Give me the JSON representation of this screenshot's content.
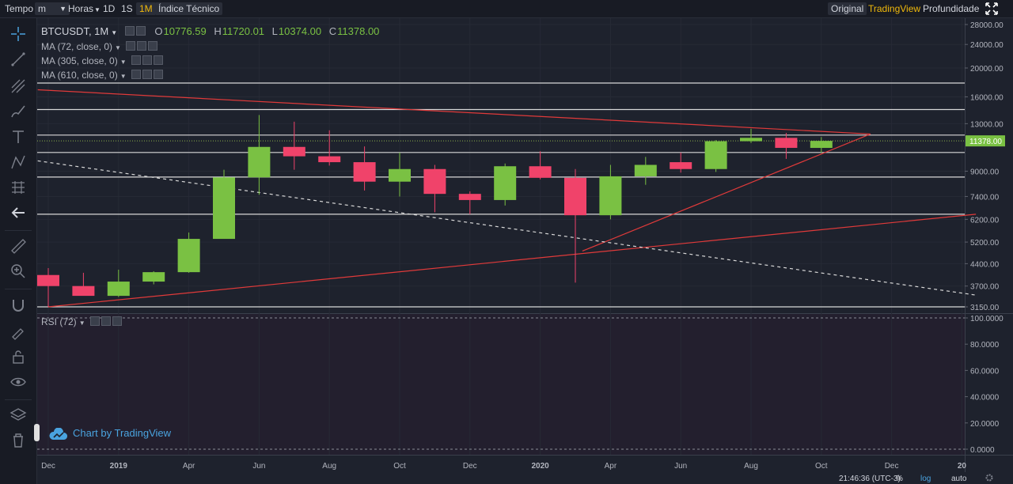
{
  "topbar": {
    "time_label": "Tempo",
    "interval_value": "m",
    "hours_label": "Horas",
    "i_1d": "1D",
    "i_1s": "1S",
    "i_1m": "1M",
    "indicators": "Índice Técnico",
    "view_original": "Original",
    "view_tradingview": "TradingView",
    "view_depth": "Profundidade"
  },
  "legend": {
    "symbol": "BTCUSDT, 1M",
    "o_key": "O",
    "o_val": "10776.59",
    "h_key": "H",
    "h_val": "11720.01",
    "l_key": "L",
    "l_val": "10374.00",
    "c_key": "C",
    "c_val": "11378.00",
    "ma1": "MA (72, close, 0)",
    "ma2": "MA (305, close, 0)",
    "ma3": "MA (610, close, 0)",
    "rsi": "RSI (72)"
  },
  "watermark": "Chart by TradingView",
  "bottombar": {
    "time": "21:46:36 (UTC-3)",
    "percent": "%",
    "log": "log",
    "auto": "auto"
  },
  "colors": {
    "up": "#7ac143",
    "down": "#f0436a",
    "trend": "#e03a3a",
    "bg": "#1e222d",
    "accent": "#f0b90b"
  },
  "chart_data": [
    {
      "type": "candlestick",
      "title": "BTCUSDT, 1M",
      "scale": "log",
      "ylim": [
        3000,
        30000
      ],
      "price_ticks": [
        28000,
        24000,
        20000,
        16000,
        13000,
        9000,
        7400,
        6200,
        5200,
        4400,
        3700,
        3150
      ],
      "price_tick_labels": [
        "28000.00",
        "24000.00",
        "20000.00",
        "16000.00",
        "13000.00",
        "9000.00",
        "7400.00",
        "6200.00",
        "5200.00",
        "4400.00",
        "3700.00",
        "3150.00"
      ],
      "current_price": 11378.0,
      "current_price_label": "11378.00",
      "x_labels": [
        "Dec",
        "2019",
        "Apr",
        "Jun",
        "Aug",
        "Oct",
        "Dec",
        "2020",
        "Apr",
        "Jun",
        "Aug",
        "Oct",
        "Dec",
        "20"
      ],
      "candles": [
        {
          "m": "2018-12",
          "o": 4030,
          "h": 4250,
          "l": 3150,
          "c": 3700
        },
        {
          "m": "2019-01",
          "o": 3700,
          "h": 4100,
          "l": 3450,
          "c": 3430
        },
        {
          "m": "2019-02",
          "o": 3430,
          "h": 4200,
          "l": 3400,
          "c": 3830
        },
        {
          "m": "2019-03",
          "o": 3830,
          "h": 4150,
          "l": 3750,
          "c": 4120
        },
        {
          "m": "2019-04",
          "o": 4120,
          "h": 5600,
          "l": 4100,
          "c": 5330
        },
        {
          "m": "2019-05",
          "o": 5330,
          "h": 9100,
          "l": 5330,
          "c": 8580
        },
        {
          "m": "2019-06",
          "o": 8580,
          "h": 13900,
          "l": 7500,
          "c": 10860
        },
        {
          "m": "2019-07",
          "o": 10860,
          "h": 13200,
          "l": 9100,
          "c": 10100
        },
        {
          "m": "2019-08",
          "o": 10100,
          "h": 12350,
          "l": 9400,
          "c": 9650
        },
        {
          "m": "2019-09",
          "o": 9650,
          "h": 10900,
          "l": 7750,
          "c": 8300
        },
        {
          "m": "2019-10",
          "o": 8300,
          "h": 10400,
          "l": 7400,
          "c": 9150
        },
        {
          "m": "2019-11",
          "o": 9150,
          "h": 9450,
          "l": 6550,
          "c": 7550
        },
        {
          "m": "2019-12",
          "o": 7550,
          "h": 7700,
          "l": 6450,
          "c": 7200
        },
        {
          "m": "2020-01",
          "o": 7200,
          "h": 9550,
          "l": 6900,
          "c": 9350
        },
        {
          "m": "2020-02",
          "o": 9350,
          "h": 10500,
          "l": 8450,
          "c": 8550
        },
        {
          "m": "2020-03",
          "o": 8550,
          "h": 9150,
          "l": 3800,
          "c": 6400
        },
        {
          "m": "2020-04",
          "o": 6400,
          "h": 9450,
          "l": 6200,
          "c": 8650
        },
        {
          "m": "2020-05",
          "o": 8650,
          "h": 10050,
          "l": 8100,
          "c": 9450
        },
        {
          "m": "2020-06",
          "o": 9650,
          "h": 10400,
          "l": 8900,
          "c": 9150
        },
        {
          "m": "2020-07",
          "o": 9150,
          "h": 11450,
          "l": 8950,
          "c": 11350
        },
        {
          "m": "2020-08",
          "o": 11350,
          "h": 12500,
          "l": 11200,
          "c": 11650
        },
        {
          "m": "2020-09",
          "o": 11650,
          "h": 12100,
          "l": 9900,
          "c": 10780
        },
        {
          "m": "2020-10",
          "o": 10776.59,
          "h": 11720.01,
          "l": 10374.0,
          "c": 11378.0
        }
      ],
      "horizontal_levels": [
        17800,
        14500,
        11900,
        10400,
        8600,
        6450,
        3150
      ]
    },
    {
      "type": "line",
      "title": "RSI (72)",
      "ylim": [
        0,
        100
      ],
      "y_ticks": [
        100,
        80,
        60,
        40,
        20,
        0
      ],
      "y_tick_labels": [
        "100.0000",
        "80.0000",
        "60.0000",
        "40.0000",
        "20.0000",
        "0.0000"
      ]
    }
  ]
}
